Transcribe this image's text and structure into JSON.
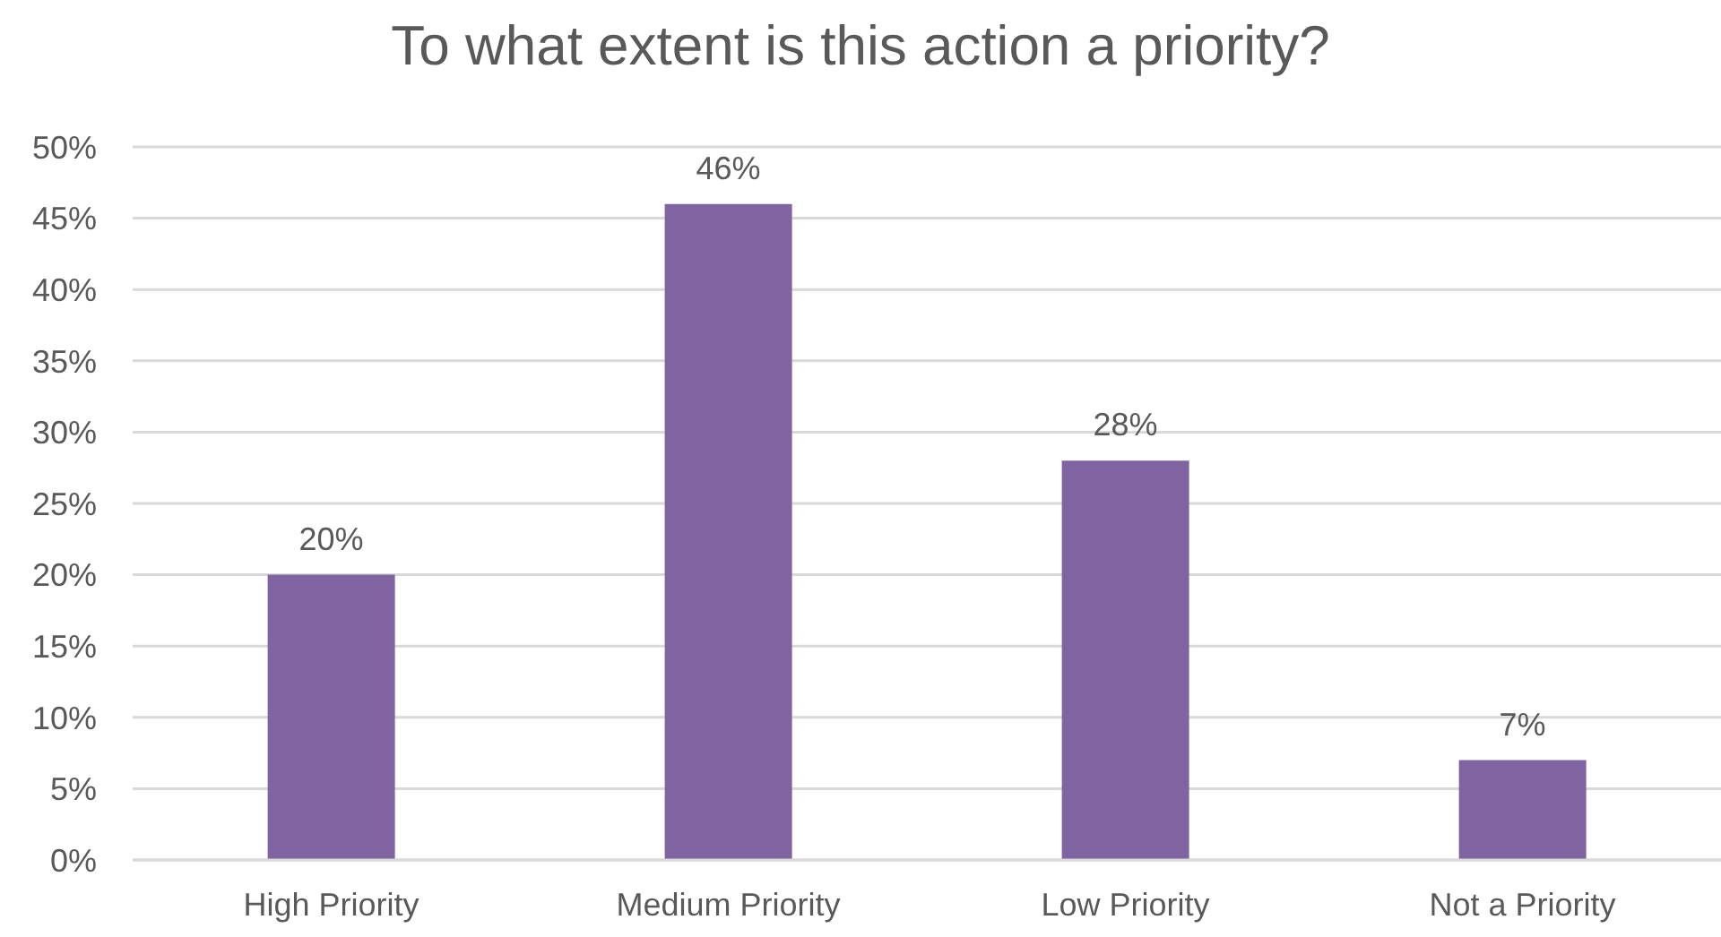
{
  "chart_data": {
    "type": "bar",
    "title": "To what extent is this action a priority?",
    "categories": [
      "High Priority",
      "Medium Priority",
      "Low Priority",
      "Not a Priority"
    ],
    "values": [
      20,
      46,
      28,
      7
    ],
    "value_labels": [
      "20%",
      "46%",
      "28%",
      "7%"
    ],
    "color": "#8064a2",
    "ylim": [
      0,
      50
    ],
    "yticks": [
      {
        "value": 0,
        "label": "0%"
      },
      {
        "value": 5,
        "label": "5%"
      },
      {
        "value": 10,
        "label": "10%"
      },
      {
        "value": 15,
        "label": "15%"
      },
      {
        "value": 20,
        "label": "20%"
      },
      {
        "value": 25,
        "label": "25%"
      },
      {
        "value": 30,
        "label": "30%"
      },
      {
        "value": 35,
        "label": "35%"
      },
      {
        "value": 40,
        "label": "40%"
      },
      {
        "value": 45,
        "label": "45%"
      },
      {
        "value": 50,
        "label": "50%"
      }
    ],
    "grid": "y"
  }
}
